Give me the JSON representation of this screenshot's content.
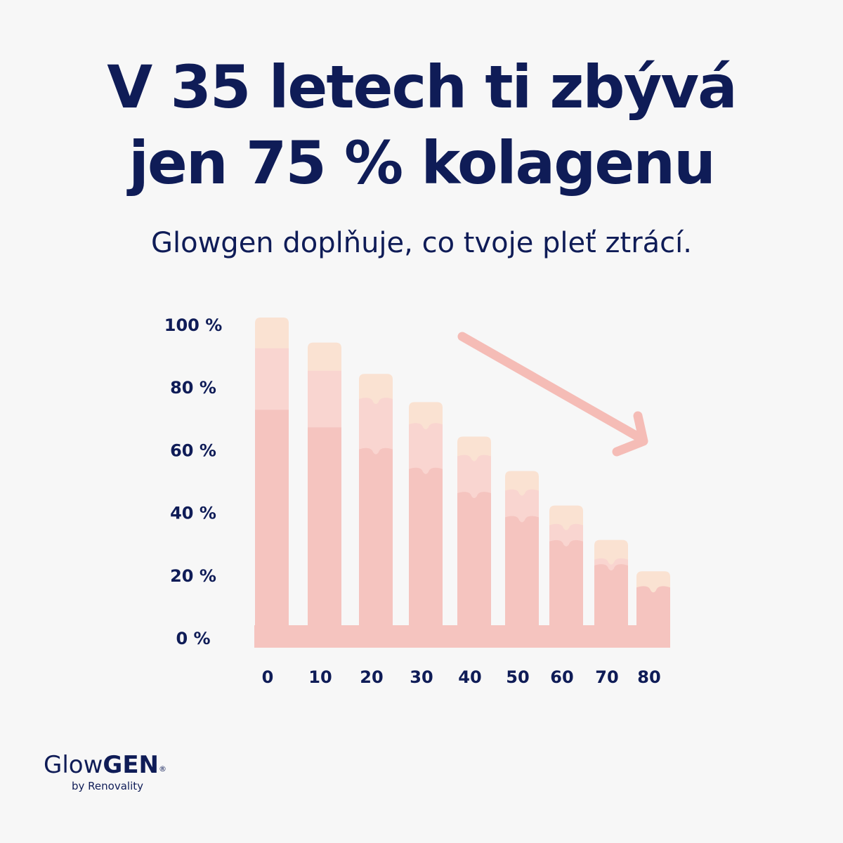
{
  "header": {
    "title_line1": "V 35 letech ti zbývá",
    "title_line2": "jen 75 % kolagenu",
    "subtitle": "Glowgen doplňuje, co tvoje pleť ztrácí."
  },
  "brand": {
    "name_light": "Glow",
    "name_bold": "GEN",
    "registered": "®",
    "byline": "by Renovality"
  },
  "colors": {
    "bar_bottom": "#f5c4bf",
    "bar_middle": "#f9d5d0",
    "bar_top": "#fae2d2",
    "arrow": "#f5bcb6",
    "text": "#0f1c57"
  },
  "chart_data": {
    "type": "bar",
    "categories": [
      "0",
      "10",
      "20",
      "30",
      "40",
      "50",
      "60",
      "70",
      "80"
    ],
    "values": [
      100,
      92,
      82,
      73,
      62,
      51,
      40,
      29,
      19
    ],
    "yticks": [
      "0 %",
      "20 %",
      "40 %",
      "60 %",
      "80 %",
      "100 %"
    ],
    "ylim": [
      0,
      100
    ],
    "grid": false,
    "legend": "none",
    "trend_arrow": "down"
  }
}
